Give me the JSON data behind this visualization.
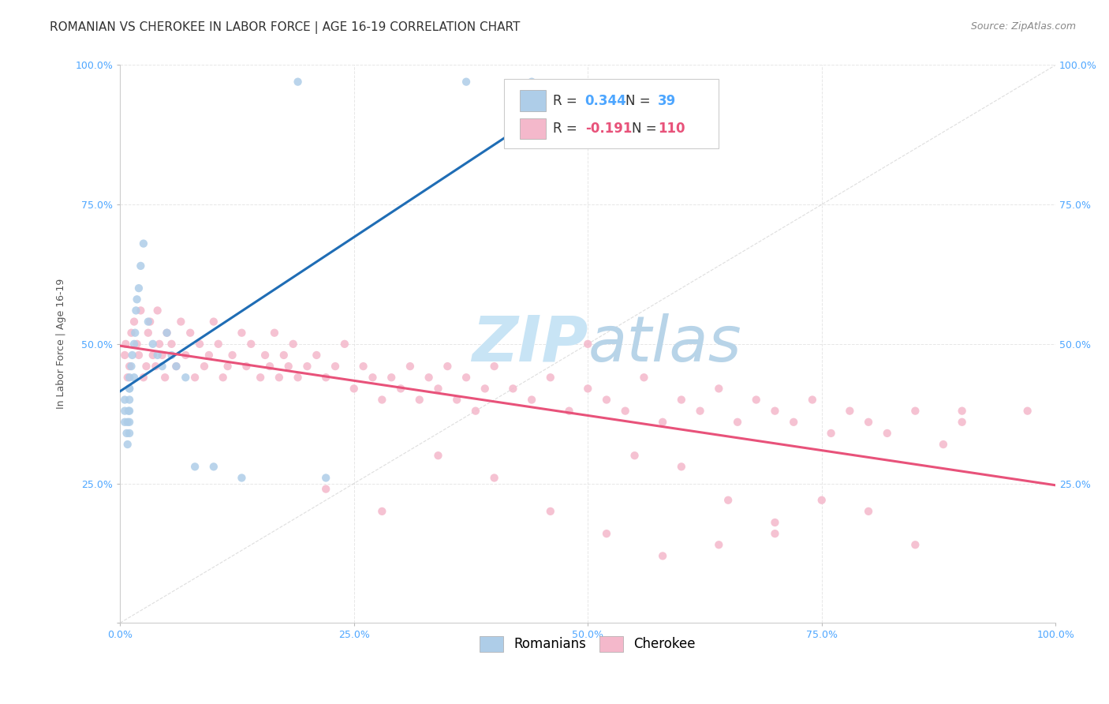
{
  "title": "ROMANIAN VS CHEROKEE IN LABOR FORCE | AGE 16-19 CORRELATION CHART",
  "source": "Source: ZipAtlas.com",
  "ylabel": "In Labor Force | Age 16-19",
  "xlim": [
    0.0,
    1.0
  ],
  "ylim": [
    0.0,
    1.0
  ],
  "xticks": [
    0.0,
    0.25,
    0.5,
    0.75,
    1.0
  ],
  "yticks": [
    0.0,
    0.25,
    0.5,
    0.75,
    1.0
  ],
  "xticklabels": [
    "0.0%",
    "25.0%",
    "50.0%",
    "75.0%",
    "100.0%"
  ],
  "left_yticklabels": [
    "",
    "25.0%",
    "50.0%",
    "75.0%",
    "100.0%"
  ],
  "right_yticklabels": [
    "",
    "25.0%",
    "50.0%",
    "75.0%",
    "100.0%"
  ],
  "romanian_R": 0.344,
  "romanian_N": 39,
  "cherokee_R": -0.191,
  "cherokee_N": 110,
  "romanian_color": "#aecde8",
  "cherokee_color": "#f4b8cb",
  "romanian_line_color": "#1f6db5",
  "cherokee_line_color": "#e8527a",
  "diagonal_line_color": "#c8c8c8",
  "watermark_color": "#c8e4f5",
  "background_color": "#ffffff",
  "grid_color": "#e0e0e0",
  "scatter_alpha": 0.85,
  "scatter_size": 55,
  "romanian_x": [
    0.005,
    0.005,
    0.005,
    0.007,
    0.008,
    0.008,
    0.009,
    0.01,
    0.01,
    0.01,
    0.01,
    0.01,
    0.01,
    0.01,
    0.012,
    0.013,
    0.015,
    0.015,
    0.016,
    0.017,
    0.018,
    0.02,
    0.022,
    0.025,
    0.03,
    0.035,
    0.04,
    0.045,
    0.05,
    0.055,
    0.06,
    0.07,
    0.08,
    0.1,
    0.13,
    0.19,
    0.22,
    0.37,
    0.44
  ],
  "romanian_y": [
    0.36,
    0.38,
    0.4,
    0.34,
    0.32,
    0.36,
    0.38,
    0.4,
    0.42,
    0.44,
    0.42,
    0.38,
    0.36,
    0.34,
    0.46,
    0.48,
    0.5,
    0.44,
    0.52,
    0.56,
    0.58,
    0.6,
    0.64,
    0.68,
    0.54,
    0.5,
    0.48,
    0.46,
    0.52,
    0.48,
    0.46,
    0.44,
    0.28,
    0.28,
    0.26,
    0.97,
    0.26,
    0.97,
    0.97
  ],
  "cherokee_x": [
    0.005,
    0.006,
    0.008,
    0.01,
    0.012,
    0.015,
    0.018,
    0.02,
    0.022,
    0.025,
    0.028,
    0.03,
    0.032,
    0.035,
    0.038,
    0.04,
    0.042,
    0.045,
    0.048,
    0.05,
    0.055,
    0.06,
    0.065,
    0.07,
    0.075,
    0.08,
    0.085,
    0.09,
    0.095,
    0.1,
    0.105,
    0.11,
    0.115,
    0.12,
    0.13,
    0.135,
    0.14,
    0.15,
    0.155,
    0.16,
    0.165,
    0.17,
    0.175,
    0.18,
    0.185,
    0.19,
    0.2,
    0.21,
    0.22,
    0.23,
    0.24,
    0.25,
    0.26,
    0.27,
    0.28,
    0.29,
    0.3,
    0.31,
    0.32,
    0.33,
    0.34,
    0.35,
    0.36,
    0.37,
    0.38,
    0.39,
    0.4,
    0.42,
    0.44,
    0.46,
    0.48,
    0.5,
    0.52,
    0.54,
    0.56,
    0.58,
    0.6,
    0.62,
    0.64,
    0.66,
    0.68,
    0.7,
    0.72,
    0.74,
    0.76,
    0.78,
    0.8,
    0.82,
    0.85,
    0.88,
    0.9,
    0.5,
    0.55,
    0.6,
    0.65,
    0.7,
    0.75,
    0.8,
    0.85,
    0.9,
    0.22,
    0.28,
    0.34,
    0.4,
    0.46,
    0.52,
    0.58,
    0.64,
    0.7,
    0.97
  ],
  "cherokee_y": [
    0.48,
    0.5,
    0.44,
    0.46,
    0.52,
    0.54,
    0.5,
    0.48,
    0.56,
    0.44,
    0.46,
    0.52,
    0.54,
    0.48,
    0.46,
    0.56,
    0.5,
    0.48,
    0.44,
    0.52,
    0.5,
    0.46,
    0.54,
    0.48,
    0.52,
    0.44,
    0.5,
    0.46,
    0.48,
    0.54,
    0.5,
    0.44,
    0.46,
    0.48,
    0.52,
    0.46,
    0.5,
    0.44,
    0.48,
    0.46,
    0.52,
    0.44,
    0.48,
    0.46,
    0.5,
    0.44,
    0.46,
    0.48,
    0.44,
    0.46,
    0.5,
    0.42,
    0.46,
    0.44,
    0.4,
    0.44,
    0.42,
    0.46,
    0.4,
    0.44,
    0.42,
    0.46,
    0.4,
    0.44,
    0.38,
    0.42,
    0.46,
    0.42,
    0.4,
    0.44,
    0.38,
    0.42,
    0.4,
    0.38,
    0.44,
    0.36,
    0.4,
    0.38,
    0.42,
    0.36,
    0.4,
    0.38,
    0.36,
    0.4,
    0.34,
    0.38,
    0.36,
    0.34,
    0.38,
    0.32,
    0.36,
    0.5,
    0.3,
    0.28,
    0.22,
    0.18,
    0.22,
    0.2,
    0.14,
    0.38,
    0.24,
    0.2,
    0.3,
    0.26,
    0.2,
    0.16,
    0.12,
    0.14,
    0.16,
    0.38
  ],
  "title_fontsize": 11,
  "axis_label_fontsize": 9,
  "tick_fontsize": 9,
  "legend_fontsize": 12,
  "source_fontsize": 9,
  "tick_color": "#4da6ff",
  "title_color": "#333333",
  "source_color": "#888888",
  "ylabel_color": "#555555"
}
